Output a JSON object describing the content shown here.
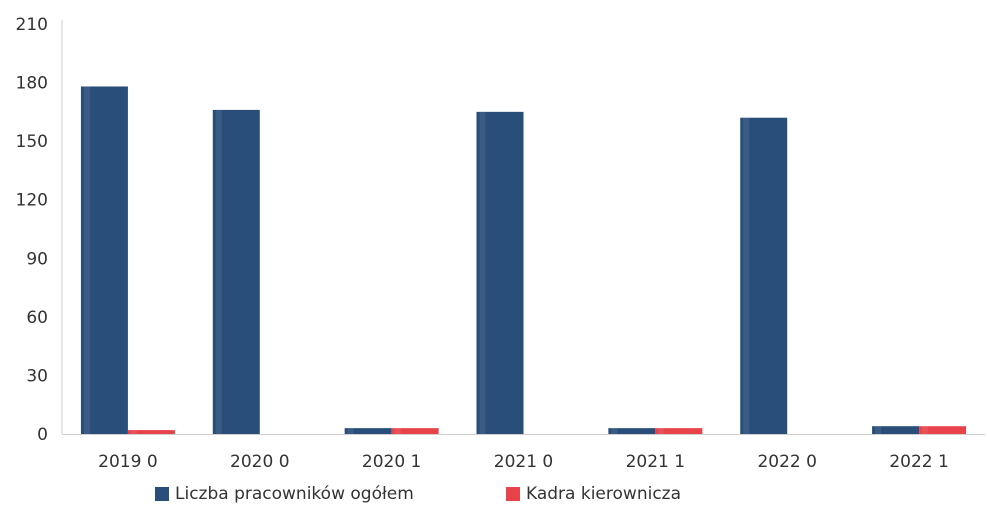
{
  "chart_data": {
    "type": "bar",
    "categories": [
      "2019 0",
      "2020 0",
      "2020 1",
      "2021 0",
      "2021 1",
      "2022 0",
      "2022 1"
    ],
    "series": [
      {
        "name": "Liczba pracowników ogółem",
        "color": "#2a4e7a",
        "values": [
          178,
          166,
          3,
          165,
          3,
          162,
          4
        ]
      },
      {
        "name": "Kadra kierownicza",
        "color": "#e8434b",
        "values": [
          2,
          0,
          3,
          0,
          3,
          0,
          4
        ]
      }
    ],
    "yticks": [
      0,
      30,
      60,
      90,
      120,
      150,
      180,
      210
    ],
    "ylim": [
      0,
      210
    ],
    "grid": false,
    "legend_position": "bottom"
  }
}
